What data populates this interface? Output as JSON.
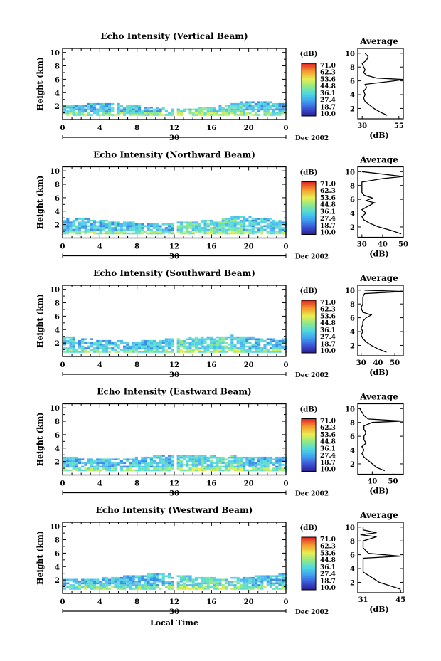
{
  "page": {
    "bottom_label": "Local Time"
  },
  "chart_data": [
    {
      "type": "heatmap",
      "title": "Echo Intensity (Vertical Beam)",
      "ylabel": "Height (km)",
      "x_ticks": [
        "0",
        "4",
        "8",
        "12",
        "16",
        "20",
        "0"
      ],
      "date_label": "30",
      "date_suffix": "Dec 2002",
      "y_ticks": [
        "2",
        "4",
        "6",
        "8",
        "10"
      ],
      "colorbar_unit": "(dB)",
      "colorbar_values": [
        "71.0",
        "62.3",
        "53.6",
        "44.8",
        "36.1",
        "27.4",
        "18.7",
        "10.0"
      ],
      "echo_top_km": 1.9,
      "average": {
        "title": "Average",
        "xlabel": "(dB)",
        "x_ticks": [
          "30",
          "55"
        ],
        "xlim": [
          27,
          58
        ],
        "profile": [
          [
            1.0,
            47
          ],
          [
            1.5,
            42
          ],
          [
            2.0,
            38
          ],
          [
            2.5,
            35
          ],
          [
            3.0,
            32
          ],
          [
            3.5,
            31
          ],
          [
            4.0,
            32
          ],
          [
            4.5,
            31
          ],
          [
            5.0,
            33
          ],
          [
            5.5,
            32
          ],
          [
            6.0,
            52
          ],
          [
            6.2,
            58
          ],
          [
            6.4,
            40
          ],
          [
            6.8,
            33
          ],
          [
            7.2,
            31
          ],
          [
            7.6,
            32
          ],
          [
            8.0,
            31
          ],
          [
            8.5,
            30
          ],
          [
            9.0,
            33
          ],
          [
            9.5,
            34
          ],
          [
            10.0,
            32
          ]
        ]
      }
    },
    {
      "type": "heatmap",
      "title": "Echo Intensity (Northward Beam)",
      "ylabel": "Height (km)",
      "x_ticks": [
        "0",
        "4",
        "8",
        "12",
        "16",
        "20",
        "0"
      ],
      "date_label": "30",
      "date_suffix": "Dec 2002",
      "y_ticks": [
        "2",
        "4",
        "6",
        "8",
        "10"
      ],
      "colorbar_unit": "(dB)",
      "colorbar_values": [
        "71.0",
        "62.3",
        "53.6",
        "44.8",
        "36.1",
        "27.4",
        "18.7",
        "10.0"
      ],
      "echo_top_km": 2.4,
      "average": {
        "title": "Average",
        "xlabel": "(dB)",
        "x_ticks": [
          "30",
          "40",
          "50"
        ],
        "xlim": [
          28,
          50
        ],
        "profile": [
          [
            1.0,
            49
          ],
          [
            1.5,
            44
          ],
          [
            2.0,
            38
          ],
          [
            2.5,
            34
          ],
          [
            3.0,
            31
          ],
          [
            3.5,
            30
          ],
          [
            4.0,
            32
          ],
          [
            4.5,
            30
          ],
          [
            5.0,
            33
          ],
          [
            5.5,
            36
          ],
          [
            5.8,
            32
          ],
          [
            6.2,
            35
          ],
          [
            6.6,
            31
          ],
          [
            7.0,
            30
          ],
          [
            7.5,
            30
          ],
          [
            8.0,
            30
          ],
          [
            8.5,
            30
          ],
          [
            9.0,
            40
          ],
          [
            9.3,
            50
          ],
          [
            10.0,
            30
          ]
        ]
      }
    },
    {
      "type": "heatmap",
      "title": "Echo Intensity (Southward Beam)",
      "ylabel": "Height (km)",
      "x_ticks": [
        "0",
        "4",
        "8",
        "12",
        "16",
        "20",
        "0"
      ],
      "date_label": "30",
      "date_suffix": "Dec 2002",
      "y_ticks": [
        "2",
        "4",
        "6",
        "8",
        "10"
      ],
      "colorbar_unit": "(dB)",
      "colorbar_values": [
        "71.0",
        "62.3",
        "53.6",
        "44.8",
        "36.1",
        "27.4",
        "18.7",
        "10.0"
      ],
      "echo_top_km": 2.5,
      "average": {
        "title": "Average",
        "xlabel": "(dB)",
        "x_ticks": [
          "30",
          "40",
          "50"
        ],
        "xlim": [
          28,
          55
        ],
        "profile": [
          [
            1.0,
            45
          ],
          [
            1.5,
            40
          ],
          [
            2.0,
            36
          ],
          [
            2.5,
            33
          ],
          [
            3.0,
            31
          ],
          [
            3.5,
            30
          ],
          [
            4.0,
            31
          ],
          [
            4.5,
            30
          ],
          [
            5.0,
            31
          ],
          [
            5.5,
            31
          ],
          [
            6.0,
            33
          ],
          [
            6.4,
            36
          ],
          [
            6.8,
            31
          ],
          [
            7.5,
            30
          ],
          [
            8.0,
            31
          ],
          [
            8.5,
            31
          ],
          [
            9.0,
            31
          ],
          [
            9.5,
            32
          ],
          [
            9.8,
            55
          ],
          [
            10.0,
            32
          ]
        ]
      }
    },
    {
      "type": "heatmap",
      "title": "Echo Intensity (Eastward Beam)",
      "ylabel": "Height (km)",
      "x_ticks": [
        "0",
        "4",
        "8",
        "12",
        "16",
        "20",
        "0"
      ],
      "date_label": "30",
      "date_suffix": "Dec 2002",
      "y_ticks": [
        "2",
        "4",
        "6",
        "8",
        "10"
      ],
      "colorbar_unit": "(dB)",
      "colorbar_values": [
        "71.0",
        "62.3",
        "53.6",
        "44.8",
        "36.1",
        "27.4",
        "18.7",
        "10.0"
      ],
      "echo_top_km": 2.6,
      "average": {
        "title": "Average",
        "xlabel": "(dB)",
        "x_ticks": [
          "40",
          "50"
        ],
        "xlim": [
          33,
          55
        ],
        "profile": [
          [
            1.0,
            46
          ],
          [
            1.5,
            42
          ],
          [
            2.0,
            40
          ],
          [
            2.5,
            38
          ],
          [
            3.0,
            36
          ],
          [
            3.5,
            35
          ],
          [
            4.0,
            36
          ],
          [
            4.5,
            35
          ],
          [
            5.0,
            37
          ],
          [
            5.5,
            36
          ],
          [
            6.0,
            36
          ],
          [
            6.5,
            37
          ],
          [
            7.0,
            36
          ],
          [
            7.5,
            36
          ],
          [
            8.0,
            40
          ],
          [
            8.2,
            55
          ],
          [
            8.5,
            38
          ],
          [
            9.0,
            36
          ],
          [
            9.5,
            35
          ],
          [
            10.0,
            34
          ]
        ]
      }
    },
    {
      "type": "heatmap",
      "title": "Echo Intensity (Westward Beam)",
      "ylabel": "Height (km)",
      "x_ticks": [
        "0",
        "4",
        "8",
        "12",
        "16",
        "20",
        "0"
      ],
      "date_label": "30",
      "date_suffix": "Dec 2002",
      "y_ticks": [
        "2",
        "4",
        "6",
        "8",
        "10"
      ],
      "colorbar_unit": "(dB)",
      "colorbar_values": [
        "71.0",
        "62.3",
        "53.6",
        "44.8",
        "36.1",
        "27.4",
        "18.7",
        "10.0"
      ],
      "echo_top_km": 2.4,
      "average": {
        "title": "Average",
        "xlabel": "(dB)",
        "x_ticks": [
          "31",
          "45"
        ],
        "xlim": [
          29,
          46
        ],
        "profile": [
          [
            1.0,
            45
          ],
          [
            1.5,
            41
          ],
          [
            2.0,
            37
          ],
          [
            2.5,
            35
          ],
          [
            3.0,
            33
          ],
          [
            3.5,
            31
          ],
          [
            4.0,
            31
          ],
          [
            4.5,
            31
          ],
          [
            5.0,
            31
          ],
          [
            5.5,
            31
          ],
          [
            5.8,
            45
          ],
          [
            6.2,
            33
          ],
          [
            7.0,
            31
          ],
          [
            7.5,
            31
          ],
          [
            8.0,
            31
          ],
          [
            8.6,
            36
          ],
          [
            8.9,
            30
          ],
          [
            9.2,
            36
          ],
          [
            9.6,
            31
          ],
          [
            10.0,
            31
          ]
        ]
      }
    }
  ]
}
